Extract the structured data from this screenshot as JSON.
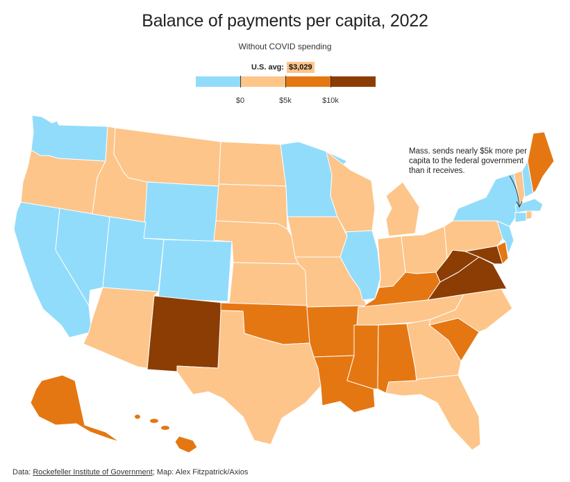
{
  "title": "Balance of payments per capita, 2022",
  "subtitle": "Without COVID spending",
  "legend": {
    "avg_label": "U.S. avg:",
    "avg_value": "$3,029",
    "ticks": [
      "$0",
      "$5k",
      "$10k"
    ],
    "colors": [
      "#92dcfb",
      "#fdc58a",
      "#e57712",
      "#8c3d03"
    ]
  },
  "annotation": "Mass. sends nearly $5k more per capita to the federal government than it receives.",
  "source": {
    "prefix": "Data: ",
    "link_text": "Rockefeller Institute of Government",
    "suffix": "; Map: Alex Fitzpatrick/Axios"
  },
  "states": [
    {
      "name": "WA",
      "cat": "blue"
    },
    {
      "name": "OR",
      "cat": "light"
    },
    {
      "name": "CA",
      "cat": "blue"
    },
    {
      "name": "NV",
      "cat": "blue"
    },
    {
      "name": "ID",
      "cat": "light"
    },
    {
      "name": "MT",
      "cat": "light"
    },
    {
      "name": "WY",
      "cat": "blue"
    },
    {
      "name": "UT",
      "cat": "blue"
    },
    {
      "name": "CO",
      "cat": "blue"
    },
    {
      "name": "AZ",
      "cat": "light"
    },
    {
      "name": "NM",
      "cat": "dark"
    },
    {
      "name": "ND",
      "cat": "light"
    },
    {
      "name": "SD",
      "cat": "light"
    },
    {
      "name": "NE",
      "cat": "light"
    },
    {
      "name": "KS",
      "cat": "light"
    },
    {
      "name": "OK",
      "cat": "orange"
    },
    {
      "name": "TX",
      "cat": "light"
    },
    {
      "name": "MN",
      "cat": "blue"
    },
    {
      "name": "IA",
      "cat": "light"
    },
    {
      "name": "MO",
      "cat": "light"
    },
    {
      "name": "AR",
      "cat": "orange"
    },
    {
      "name": "LA",
      "cat": "orange"
    },
    {
      "name": "WI",
      "cat": "light"
    },
    {
      "name": "IL",
      "cat": "blue"
    },
    {
      "name": "MI",
      "cat": "light"
    },
    {
      "name": "IN",
      "cat": "light"
    },
    {
      "name": "OH",
      "cat": "light"
    },
    {
      "name": "KY",
      "cat": "orange"
    },
    {
      "name": "TN",
      "cat": "light"
    },
    {
      "name": "MS",
      "cat": "orange"
    },
    {
      "name": "AL",
      "cat": "orange"
    },
    {
      "name": "GA",
      "cat": "light"
    },
    {
      "name": "FL",
      "cat": "light"
    },
    {
      "name": "SC",
      "cat": "orange"
    },
    {
      "name": "NC",
      "cat": "light"
    },
    {
      "name": "VA",
      "cat": "dark"
    },
    {
      "name": "WV",
      "cat": "dark"
    },
    {
      "name": "MD",
      "cat": "dark"
    },
    {
      "name": "DE",
      "cat": "orange"
    },
    {
      "name": "PA",
      "cat": "light"
    },
    {
      "name": "NJ",
      "cat": "blue"
    },
    {
      "name": "NY",
      "cat": "blue"
    },
    {
      "name": "CT",
      "cat": "blue"
    },
    {
      "name": "RI",
      "cat": "light"
    },
    {
      "name": "MA",
      "cat": "blue"
    },
    {
      "name": "VT",
      "cat": "light"
    },
    {
      "name": "NH",
      "cat": "blue"
    },
    {
      "name": "ME",
      "cat": "orange"
    },
    {
      "name": "AK",
      "cat": "orange"
    },
    {
      "name": "HI",
      "cat": "orange"
    }
  ]
}
